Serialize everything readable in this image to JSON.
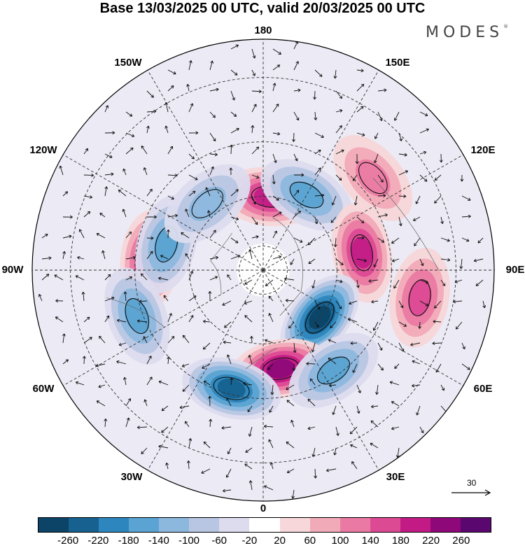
{
  "header": {
    "title": "Base 13/03/2025 00 UTC, valid 20/03/2025 00 UTC",
    "brand": "MODES"
  },
  "map": {
    "projection": "north-polar-stereographic",
    "field": "geopotential height anomaly with wind vectors",
    "longitude_labels": [
      "180",
      "150E",
      "120E",
      "90E",
      "60E",
      "30E",
      "0",
      "30W",
      "60W",
      "90W",
      "120W",
      "150W"
    ],
    "reference_vector": {
      "label": "30"
    },
    "anomaly_centers": [
      {
        "lon": 175,
        "lat": 60,
        "value": 180
      },
      {
        "lon": 150,
        "lat": 55,
        "value": -160
      },
      {
        "lon": 100,
        "lat": 50,
        "value": 180
      },
      {
        "lon": 50,
        "lat": 60,
        "value": -260
      },
      {
        "lon": 10,
        "lat": 50,
        "value": 220
      },
      {
        "lon": -15,
        "lat": 42,
        "value": -220
      },
      {
        "lon": 35,
        "lat": 42,
        "value": -160
      },
      {
        "lon": -95,
        "lat": 45,
        "value": 200
      },
      {
        "lon": -70,
        "lat": 38,
        "value": -140
      },
      {
        "lon": -105,
        "lat": 50,
        "value": -160
      },
      {
        "lon": 80,
        "lat": 30,
        "value": 160
      },
      {
        "lon": -140,
        "lat": 55,
        "value": -100
      },
      {
        "lon": 130,
        "lat": 35,
        "value": 100
      }
    ]
  },
  "colorbar": {
    "colors": [
      "#0b4466",
      "#16618f",
      "#2d86bd",
      "#5aa3d2",
      "#8db8de",
      "#b8c6e3",
      "#dcdcee",
      "#ffffff",
      "#f7d7d9",
      "#f1aab8",
      "#ea7aa3",
      "#dd4a94",
      "#c21b86",
      "#8f0879",
      "#5a0870"
    ],
    "tick_labels": [
      "-260",
      "-220",
      "-180",
      "-140",
      "-100",
      "-60",
      "-20",
      "20",
      "60",
      "100",
      "140",
      "180",
      "220",
      "260"
    ]
  }
}
